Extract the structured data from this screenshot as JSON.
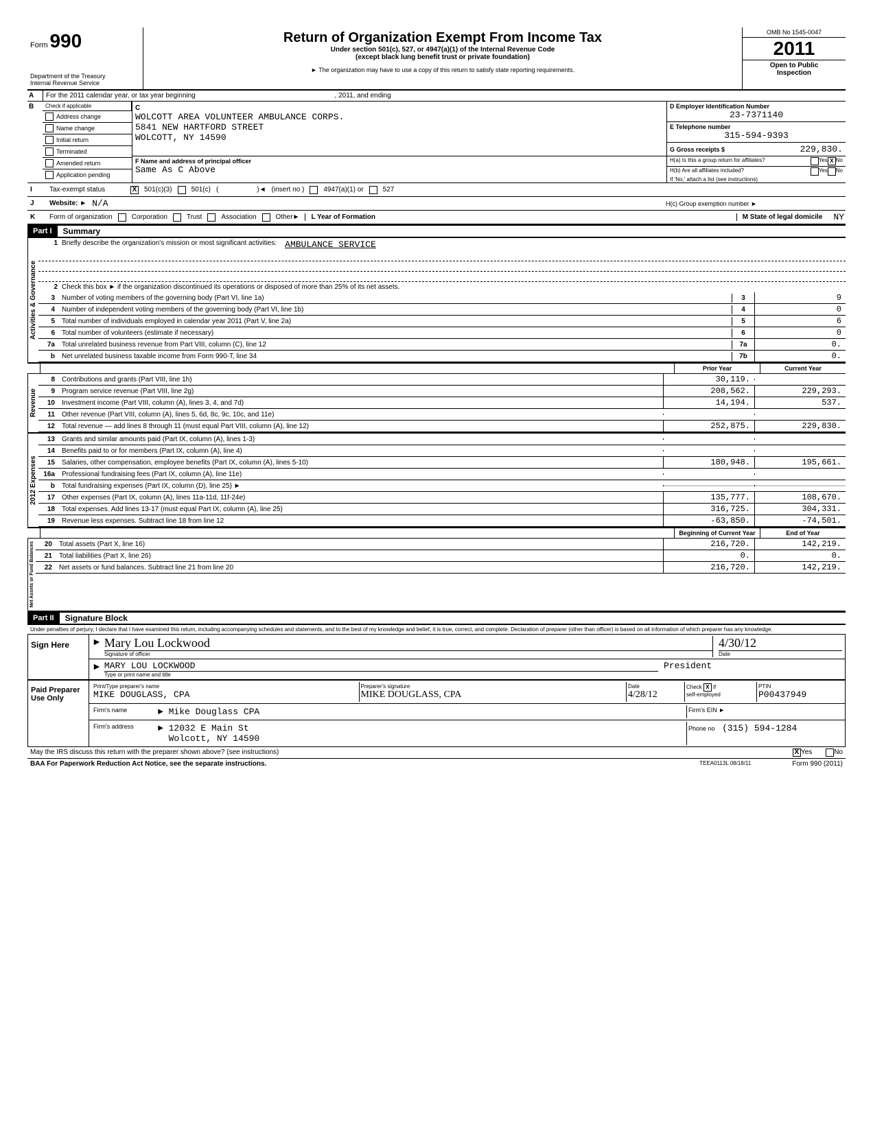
{
  "header": {
    "form_word": "Form",
    "form_number": "990",
    "dept": "Department of the Treasury",
    "irs": "Internal Revenue Service",
    "title": "Return of Organization Exempt From Income Tax",
    "subtitle1": "Under section 501(c), 527, or 4947(a)(1) of the Internal Revenue Code",
    "subtitle2": "(except black lung benefit trust or private foundation)",
    "subtitle3": "► The organization may have to use a copy of this return to satisfy state reporting requirements.",
    "omb": "OMB No 1545-0047",
    "year": "2011",
    "open": "Open to Public",
    "inspection": "Inspection"
  },
  "section_a": {
    "text": "For the 2011 calendar year, or tax year beginning",
    "mid": ", 2011, and ending",
    "letter": "A"
  },
  "section_b": {
    "letter": "B",
    "header": "Check if applicable",
    "c_letter": "C",
    "checkboxes": [
      "Address change",
      "Name change",
      "Initial return",
      "Terminated",
      "Amended return",
      "Application pending"
    ],
    "org_name": "WOLCOTT AREA VOLUNTEER AMBULANCE CORPS.",
    "addr1": "5841 NEW HARTFORD STREET",
    "addr2": "WOLCOTT, NY 14590",
    "f_label": "F  Name and address of principal officer",
    "f_value": "Same As C Above",
    "d_label": "D  Employer Identification Number",
    "ein": "23-7371140",
    "e_label": "E  Telephone number",
    "phone": "315-594-9393",
    "g_label": "G  Gross receipts $",
    "gross": "229,830.",
    "ha_label": "H(a) Is this a group return for affiliates?",
    "hb_label": "H(b) Are all affiliates included?",
    "hb_note": "If 'No,' attach a list (see instructions)",
    "yes": "Yes",
    "no": "No",
    "x": "X"
  },
  "section_i": {
    "letter": "I",
    "label": "Tax-exempt status",
    "opt1": "501(c)(3)",
    "opt2": "501(c)",
    "insert": "(insert no )",
    "opt3": "4947(a)(1) or",
    "opt4": "527",
    "x": "X"
  },
  "section_j": {
    "letter": "J",
    "label": "Website: ►",
    "value": "N/A",
    "hc_label": "H(c) Group exemption number ►"
  },
  "section_k": {
    "letter": "K",
    "label": "Form of organization",
    "opts": [
      "Corporation",
      "Trust",
      "Association",
      "Other►"
    ],
    "l_label": "L Year of Formation",
    "m_label": "M State of legal domicile",
    "m_value": "NY"
  },
  "part1": {
    "label": "Part I",
    "title": "Summary"
  },
  "governance": {
    "label": "Activities & Governance",
    "line1_num": "1",
    "line1": "Briefly describe the organization's mission or most significant activities:",
    "line1_val": "AMBULANCE SERVICE",
    "line2_num": "2",
    "line2": "Check this box ►        if the organization discontinued its operations or disposed of more than 25% of its net assets.",
    "lines": [
      {
        "num": "3",
        "desc": "Number of voting members of the governing body (Part VI, line 1a)",
        "box": "3",
        "val": "9"
      },
      {
        "num": "4",
        "desc": "Number of independent voting members of the governing body (Part VI, line 1b)",
        "box": "4",
        "val": "0"
      },
      {
        "num": "5",
        "desc": "Total number of individuals employed in calendar year 2011 (Part V, line 2a)",
        "box": "5",
        "val": "6"
      },
      {
        "num": "6",
        "desc": "Total number of volunteers (estimate if necessary)",
        "box": "6",
        "val": "0"
      },
      {
        "num": "7a",
        "desc": "Total unrelated business revenue from Part VIII, column (C), line 12",
        "box": "7a",
        "val": "0."
      },
      {
        "num": "b",
        "desc": "Net unrelated business taxable income from Form 990-T, line 34",
        "box": "7b",
        "val": "0."
      }
    ]
  },
  "col_headers": {
    "prior": "Prior Year",
    "current": "Current Year",
    "begin": "Beginning of Current Year",
    "end": "End of Year"
  },
  "revenue": {
    "label": "Revenue",
    "lines": [
      {
        "num": "8",
        "desc": "Contributions and grants (Part VIII, line 1h)",
        "prior": "30,119.",
        "current": ""
      },
      {
        "num": "9",
        "desc": "Program service revenue (Part VIII, line 2g)",
        "prior": "208,562.",
        "current": "229,293."
      },
      {
        "num": "10",
        "desc": "Investment income (Part VIII, column (A), lines 3, 4, and 7d)",
        "prior": "14,194.",
        "current": "537."
      },
      {
        "num": "11",
        "desc": "Other revenue (Part VIII, column (A), lines 5, 6d, 8c, 9c, 10c, and 11e)",
        "prior": "",
        "current": ""
      },
      {
        "num": "12",
        "desc": "Total revenue — add lines 8 through 11 (must equal Part VIII, column (A), line 12)",
        "prior": "252,875.",
        "current": "229,830."
      }
    ]
  },
  "expenses": {
    "label": "Expenses",
    "year_stamp": "2012",
    "lines": [
      {
        "num": "13",
        "desc": "Grants and similar amounts paid (Part IX, column (A), lines 1-3)",
        "prior": "",
        "current": ""
      },
      {
        "num": "14",
        "desc": "Benefits paid to or for members (Part IX, column (A), line 4)",
        "prior": "",
        "current": ""
      },
      {
        "num": "15",
        "desc": "Salaries, other compensation, employee benefits (Part IX, column (A), lines 5-10)",
        "prior": "180,948.",
        "current": "195,661."
      },
      {
        "num": "16a",
        "desc": "Professional fundraising fees (Part IX, column (A), line 11e)",
        "prior": "",
        "current": ""
      },
      {
        "num": "b",
        "desc": "Total fundraising expenses (Part IX, column (D), line 25) ►",
        "prior_shaded": true,
        "current_shaded": true
      },
      {
        "num": "17",
        "desc": "Other expenses (Part IX, column (A), lines 11a-11d, 11f-24e)",
        "prior": "135,777.",
        "current": "108,670."
      },
      {
        "num": "18",
        "desc": "Total expenses. Add lines 13-17 (must equal Part IX, column (A), line 25)",
        "prior": "316,725.",
        "current": "304,331."
      },
      {
        "num": "19",
        "desc": "Revenue less expenses. Subtract line 18 from line 12",
        "prior": "-63,850.",
        "current": "-74,501."
      }
    ]
  },
  "netassets": {
    "label": "Net Assets or Fund Balances",
    "lines": [
      {
        "num": "20",
        "desc": "Total assets (Part X, line 16)",
        "prior": "216,720.",
        "current": "142,219."
      },
      {
        "num": "21",
        "desc": "Total liabilities (Part X, line 26)",
        "prior": "0.",
        "current": "0."
      },
      {
        "num": "22",
        "desc": "Net assets or fund balances. Subtract line 21 from line 20",
        "prior": "216,720.",
        "current": "142,219."
      }
    ]
  },
  "part2": {
    "label": "Part II",
    "title": "Signature Block",
    "perjury": "Under penalties of perjury, I declare that I have examined this return, including accompanying schedules and statements, and to the best of my knowledge and belief, it is true, correct, and complete. Declaration of preparer (other than officer) is based on all information of which preparer has any knowledge."
  },
  "sign": {
    "label": "Sign Here",
    "sig_label": "Signature of officer",
    "date_label": "Date",
    "signature": "Mary Lou Lockwood",
    "date": "4/30/12",
    "name": "MARY LOU LOCKWOOD",
    "title": "President",
    "name_label": "Type or print name and title"
  },
  "preparer": {
    "label": "Paid Preparer Use Only",
    "print_label": "Print/Type preparer's name",
    "print_name": "MIKE DOUGLASS, CPA",
    "sig_label": "Preparer's signature",
    "sig": "MIKE DOUGLASS, CPA",
    "date_label": "Date",
    "date": "4/28/12",
    "check_label": "Check",
    "self_emp": "self-employed",
    "x": "X",
    "if": "if",
    "ptin_label": "PTIN",
    "ptin": "P00437949",
    "firm_name_label": "Firm's name",
    "firm_name": "Mike Douglass CPA",
    "firm_addr_label": "Firm's address",
    "firm_addr1": "12032 E Main St",
    "firm_addr2": "Wolcott, NY 14590",
    "firm_ein_label": "Firm's EIN ►",
    "phone_label": "Phone no",
    "phone": "(315) 594-1284"
  },
  "footer": {
    "discuss": "May the IRS discuss this return with the preparer shown above? (see instructions)",
    "yes": "Yes",
    "no": "No",
    "x": "X",
    "baa": "BAA  For Paperwork Reduction Act Notice, see the separate instructions.",
    "code": "TEEA0113L  08/18/11",
    "form": "Form 990 (2011)"
  }
}
